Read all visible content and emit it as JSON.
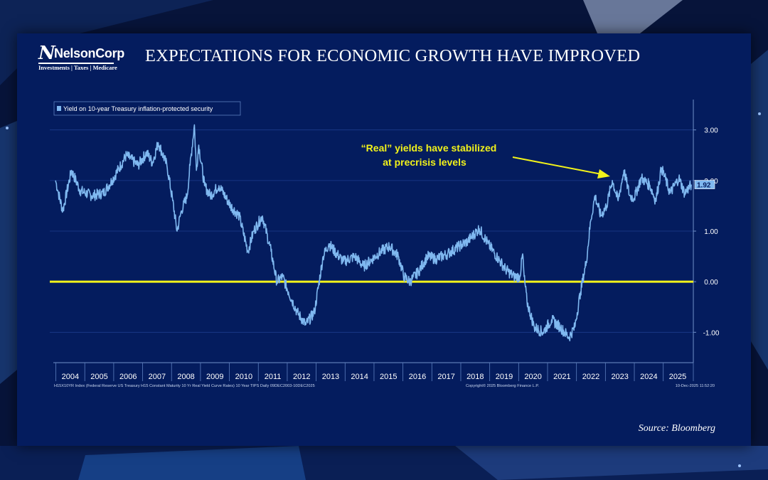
{
  "slide": {
    "title": "EXPECTATIONS FOR ECONOMIC GROWTH HAVE IMPROVED",
    "source": "Source: Bloomberg"
  },
  "logo": {
    "mark": "N",
    "name": "NelsonCorp",
    "tagline": "Investments | Taxes | Medicare"
  },
  "colors": {
    "background": "#041c5e",
    "series": "#7fb8f0",
    "reference_line": "#f2f21a",
    "annotation": "#f2f21a"
  },
  "chart_data": {
    "type": "line",
    "legend": "Yield on 10-year Treasury inflation-protected security",
    "legend_position": "top-left",
    "x": [
      2003.95,
      2004.05,
      2004.2,
      2004.5,
      2004.8,
      2005.2,
      2005.6,
      2005.9,
      2006.4,
      2006.8,
      2007.1,
      2007.3,
      2007.5,
      2007.8,
      2008.0,
      2008.15,
      2008.3,
      2008.5,
      2008.6,
      2008.75,
      2008.82,
      2008.9,
      2009.1,
      2009.3,
      2009.6,
      2010.0,
      2010.3,
      2010.6,
      2010.8,
      2011.1,
      2011.4,
      2011.6,
      2011.8,
      2012.0,
      2012.3,
      2012.6,
      2012.9,
      2013.2,
      2013.4,
      2013.6,
      2013.9,
      2014.3,
      2014.6,
      2014.9,
      2015.2,
      2015.5,
      2015.8,
      2016.0,
      2016.2,
      2016.5,
      2016.8,
      2017.1,
      2017.5,
      2017.9,
      2018.2,
      2018.6,
      2018.9,
      2019.2,
      2019.5,
      2019.8,
      2020.0,
      2020.1,
      2020.15,
      2020.25,
      2020.5,
      2020.8,
      2021.1,
      2021.4,
      2021.7,
      2021.9,
      2022.1,
      2022.3,
      2022.45,
      2022.6,
      2022.8,
      2023.0,
      2023.2,
      2023.4,
      2023.6,
      2023.8,
      2023.95,
      2024.2,
      2024.5,
      2024.7,
      2024.9,
      2025.2,
      2025.5,
      2025.7,
      2025.93
    ],
    "y": [
      2.0,
      1.75,
      1.4,
      2.2,
      1.8,
      1.7,
      1.75,
      2.0,
      2.5,
      2.3,
      2.55,
      2.35,
      2.75,
      2.3,
      1.6,
      1.0,
      1.4,
      1.7,
      2.3,
      3.1,
      2.2,
      2.7,
      1.9,
      1.7,
      1.9,
      1.5,
      1.3,
      0.6,
      1.0,
      1.3,
      0.6,
      0.0,
      0.1,
      -0.2,
      -0.6,
      -0.85,
      -0.6,
      0.5,
      0.75,
      0.6,
      0.4,
      0.5,
      0.3,
      0.45,
      0.6,
      0.7,
      0.5,
      0.1,
      0.0,
      0.2,
      0.5,
      0.45,
      0.55,
      0.7,
      0.8,
      1.05,
      0.75,
      0.5,
      0.25,
      0.1,
      0.1,
      0.55,
      0.1,
      -0.4,
      -0.9,
      -1.0,
      -0.75,
      -0.9,
      -1.1,
      -0.9,
      -0.2,
      0.4,
      1.2,
      1.7,
      1.3,
      1.5,
      2.0,
      1.6,
      2.2,
      1.7,
      1.65,
      2.05,
      1.9,
      1.6,
      2.25,
      1.75,
      2.05,
      1.75,
      1.92
    ],
    "x_tick_labels": [
      "2004",
      "2005",
      "2006",
      "2007",
      "2008",
      "2009",
      "2010",
      "2011",
      "2012",
      "2013",
      "2014",
      "2015",
      "2016",
      "2017",
      "2018",
      "2019",
      "2020",
      "2021",
      "2022",
      "2023",
      "2024",
      "2025"
    ],
    "y_ticks": [
      -1,
      0,
      1,
      2,
      3
    ],
    "y_tick_labels": [
      "-1.00",
      "0.00",
      "1.00",
      "2.00",
      "3.00"
    ],
    "xlim": [
      2003.75,
      2026.0
    ],
    "ylim": [
      -1.6,
      3.6
    ],
    "last_value_label": "1.92",
    "reference_line_y": 0,
    "annotation": {
      "line1": "“Real” yields have stabilized",
      "line2": "at precrisis levels"
    },
    "footer_left": "H15X10YR Index (Federal Reserve US Treasury H15 Constant Maturity 10 Yr Real Yield Curve Rates) 10 Year TIPS Daily 09DEC2003-10DEC2025",
    "footer_center": "Copyright© 2025 Bloomberg Finance L.P.",
    "footer_right": "10-Dec-2025 11:52:20"
  }
}
